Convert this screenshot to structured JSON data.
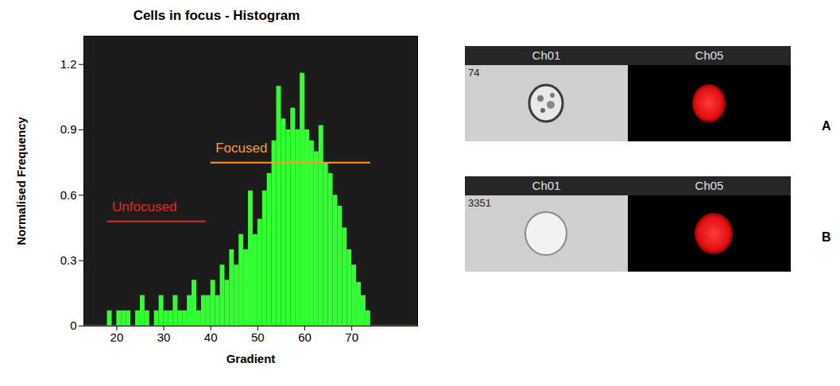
{
  "chart_data": {
    "type": "histogram",
    "title": "Cells in focus - Histogram",
    "x_label": "Gradient",
    "y_label": "Normalised Frequency",
    "bins": [
      13,
      14,
      15,
      16,
      17,
      18,
      19,
      20,
      21,
      22,
      23,
      24,
      25,
      26,
      27,
      28,
      29,
      30,
      31,
      32,
      33,
      34,
      35,
      36,
      37,
      38,
      39,
      40,
      41,
      42,
      43,
      44,
      45,
      46,
      47,
      48,
      49,
      50,
      51,
      52,
      53,
      54,
      55,
      56,
      57,
      58,
      59,
      60,
      61,
      62,
      63,
      64,
      65,
      66,
      67,
      68,
      69,
      70,
      71,
      72,
      73,
      74,
      75,
      76,
      77,
      78,
      79,
      80,
      81,
      82,
      83,
      84
    ],
    "values": [
      0,
      0,
      0,
      0,
      0,
      0.07,
      0,
      0.07,
      0.07,
      0.07,
      0,
      0.07,
      0.14,
      0.07,
      0,
      0.07,
      0.14,
      0.07,
      0.07,
      0.14,
      0.07,
      0.07,
      0.14,
      0.21,
      0.07,
      0.14,
      0.14,
      0.21,
      0.14,
      0.28,
      0.21,
      0.35,
      0.28,
      0.42,
      0.35,
      0.62,
      0.42,
      0.49,
      0.62,
      0.7,
      0.85,
      1.1,
      0.95,
      0.9,
      1.0,
      0.9,
      1.16,
      0.9,
      0.85,
      0.8,
      0.92,
      0.75,
      0.7,
      0.6,
      0.55,
      0.45,
      0.35,
      0.28,
      0.2,
      0.14,
      0.07,
      0,
      0,
      0,
      0,
      0,
      0,
      0,
      0,
      0,
      0
    ],
    "color": "#33ff33",
    "xlim": [
      13,
      84
    ],
    "ylim": [
      0,
      1.33
    ],
    "xticks": [
      20,
      30,
      40,
      50,
      60,
      70
    ],
    "yticks": [
      0,
      0.3,
      0.6,
      0.9,
      1.2
    ],
    "annotations": [
      {
        "text": "Unfocused",
        "x": [
          18,
          39
        ],
        "y": 0.48,
        "color": "#ee2222"
      },
      {
        "text": "Focused",
        "x": [
          40,
          74
        ],
        "y": 0.75,
        "color": "#ff9933"
      }
    ]
  },
  "image_panels": [
    {
      "letter": "A",
      "event": "74",
      "channels": [
        "Ch01",
        "Ch05"
      ]
    },
    {
      "letter": "B",
      "event": "3351",
      "channels": [
        "Ch01",
        "Ch05"
      ]
    }
  ]
}
